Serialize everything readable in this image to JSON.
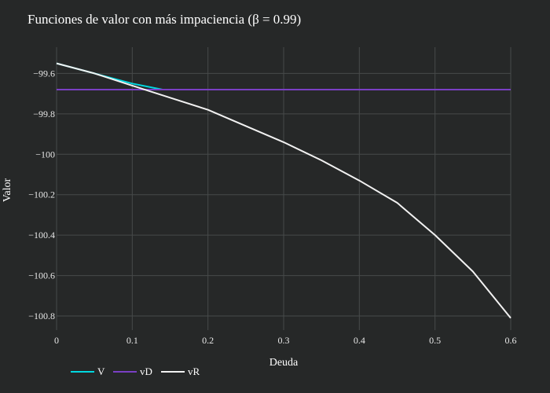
{
  "chart_data": {
    "type": "line",
    "title": "Funciones de valor con más impaciencia (β = 0.99)",
    "xlabel": "Deuda",
    "ylabel": "Valor",
    "xlim": [
      0,
      0.6
    ],
    "ylim": [
      -100.87,
      -99.47
    ],
    "grid": true,
    "legend_position": "bottom-left",
    "x_ticks": [
      {
        "value": 0,
        "label": "0"
      },
      {
        "value": 0.1,
        "label": "0.1"
      },
      {
        "value": 0.2,
        "label": "0.2"
      },
      {
        "value": 0.3,
        "label": "0.3"
      },
      {
        "value": 0.4,
        "label": "0.4"
      },
      {
        "value": 0.5,
        "label": "0.5"
      },
      {
        "value": 0.6,
        "label": "0.6"
      }
    ],
    "y_ticks": [
      {
        "value": -99.6,
        "label": "−99.6"
      },
      {
        "value": -99.8,
        "label": "−99.8"
      },
      {
        "value": -100,
        "label": "−100"
      },
      {
        "value": -100.2,
        "label": "−100.2"
      },
      {
        "value": -100.4,
        "label": "−100.4"
      },
      {
        "value": -100.6,
        "label": "−100.6"
      },
      {
        "value": -100.8,
        "label": "−100.8"
      }
    ],
    "series": [
      {
        "name": "V",
        "color": "#00d8e0",
        "x": [
          0,
          0.05,
          0.1,
          0.14,
          0.2,
          0.3,
          0.4,
          0.5,
          0.6
        ],
        "y": [
          -99.55,
          -99.6,
          -99.65,
          -99.68,
          -99.68,
          -99.68,
          -99.68,
          -99.68,
          -99.68
        ]
      },
      {
        "name": "vD",
        "color": "#7a3fc4",
        "x": [
          0,
          0.6
        ],
        "y": [
          -99.68,
          -99.68
        ]
      },
      {
        "name": "vR",
        "color": "#f2f2f2",
        "x": [
          0,
          0.05,
          0.1,
          0.15,
          0.2,
          0.25,
          0.3,
          0.35,
          0.4,
          0.45,
          0.5,
          0.55,
          0.6
        ],
        "y": [
          -99.55,
          -99.6,
          -99.66,
          -99.72,
          -99.78,
          -99.86,
          -99.94,
          -100.03,
          -100.13,
          -100.24,
          -100.4,
          -100.58,
          -100.81
        ]
      }
    ]
  }
}
